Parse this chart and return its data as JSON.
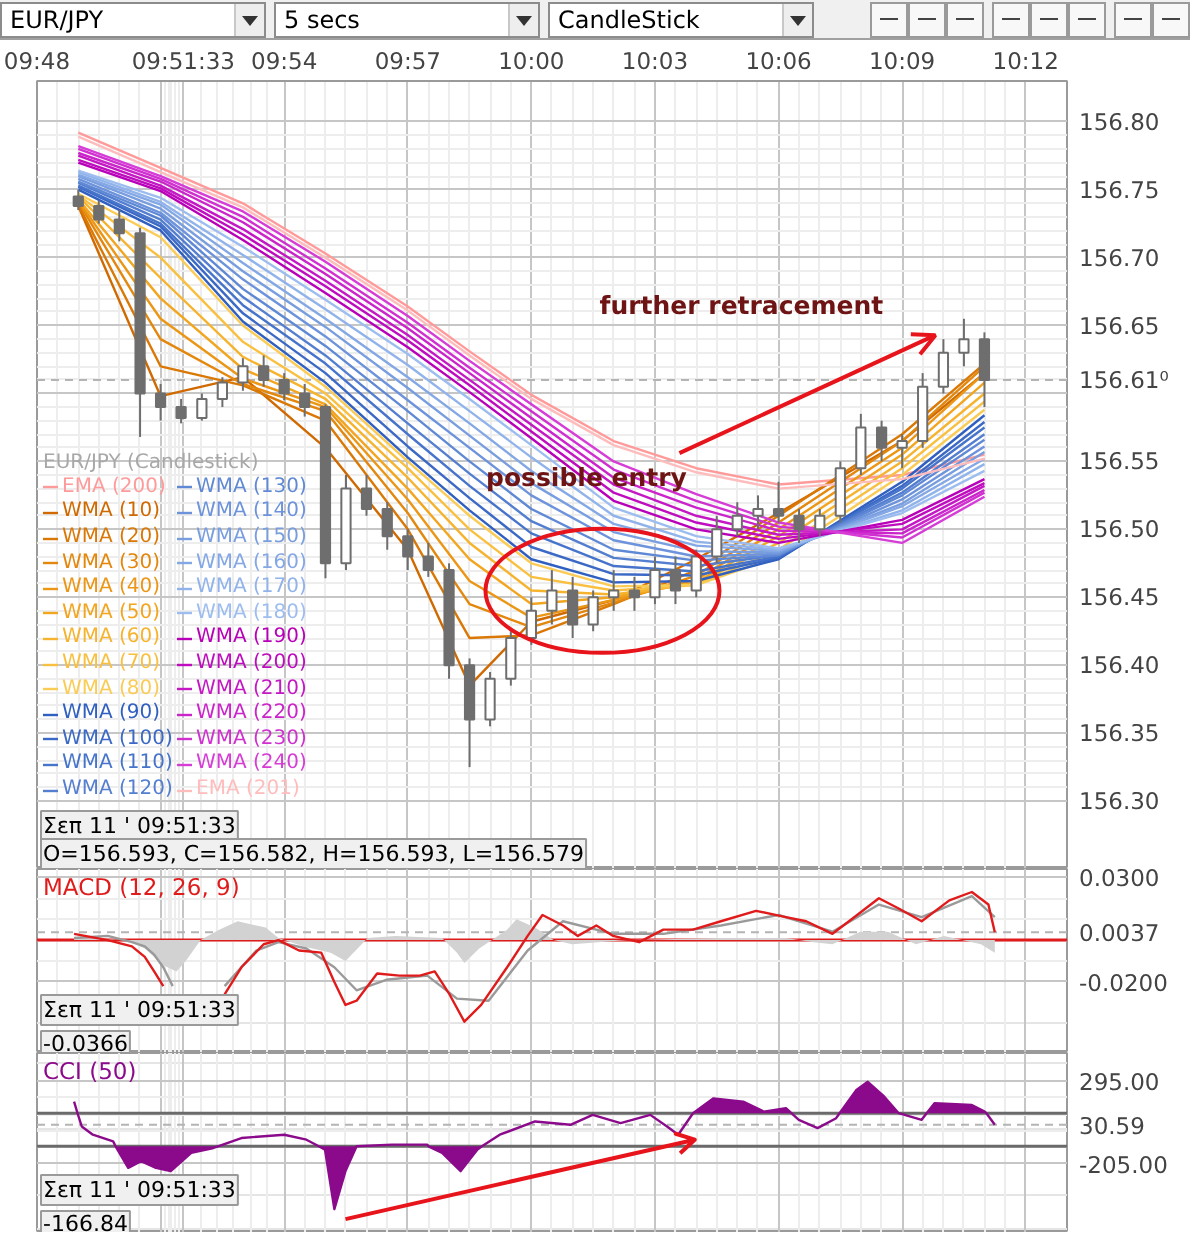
{
  "chart_data": [
    {
      "type": "candlestick",
      "legend_title": "EUR/JPY (Candlestick)",
      "color": "#6e6e6e",
      "x": [
        9.8167,
        9.825,
        9.8333,
        9.8417,
        9.85,
        9.8583,
        9.8667,
        9.875,
        9.8833,
        9.8917,
        9.9,
        9.9083,
        9.9167,
        9.925,
        9.9333,
        9.9417,
        9.95,
        9.9583,
        9.9667,
        9.975,
        9.9833,
        9.9917,
        10.0,
        10.0083,
        10.0167,
        10.025,
        10.0333,
        10.0417,
        10.05,
        10.0583,
        10.0667,
        10.075,
        10.0833,
        10.0917,
        10.1,
        10.1083,
        10.1167,
        10.125,
        10.1333,
        10.1417,
        10.15,
        10.1583,
        10.1667,
        10.175,
        10.1833
      ],
      "ohlc": [
        [
          156.745,
          156.75,
          156.735,
          156.738
        ],
        [
          156.738,
          156.742,
          156.725,
          156.728
        ],
        [
          156.728,
          156.735,
          156.712,
          156.718
        ],
        [
          156.718,
          156.722,
          156.568,
          156.6
        ],
        [
          156.6,
          156.607,
          156.58,
          156.59
        ],
        [
          156.59,
          156.596,
          156.578,
          156.582
        ],
        [
          156.582,
          156.6,
          156.58,
          156.596
        ],
        [
          156.596,
          156.612,
          156.59,
          156.608
        ],
        [
          156.608,
          156.626,
          156.602,
          156.62
        ],
        [
          156.62,
          156.628,
          156.605,
          156.61
        ],
        [
          156.61,
          156.615,
          156.595,
          156.6
        ],
        [
          156.6,
          156.607,
          156.583,
          156.59
        ],
        [
          156.59,
          156.592,
          156.464,
          156.475
        ],
        [
          156.475,
          156.54,
          156.47,
          156.53
        ],
        [
          156.53,
          156.54,
          156.51,
          156.515
        ],
        [
          156.515,
          156.52,
          156.485,
          156.495
        ],
        [
          156.495,
          156.5,
          156.47,
          156.48
        ],
        [
          156.48,
          156.49,
          156.465,
          156.47
        ],
        [
          156.47,
          156.475,
          156.39,
          156.4
        ],
        [
          156.4,
          156.405,
          156.325,
          156.36
        ],
        [
          156.36,
          156.395,
          156.355,
          156.39
        ],
        [
          156.39,
          156.425,
          156.385,
          156.42
        ],
        [
          156.42,
          156.45,
          156.415,
          156.44
        ],
        [
          156.44,
          156.47,
          156.43,
          156.455
        ],
        [
          156.455,
          156.465,
          156.42,
          156.43
        ],
        [
          156.43,
          156.455,
          156.425,
          156.45
        ],
        [
          156.45,
          156.47,
          156.44,
          156.455
        ],
        [
          156.455,
          156.465,
          156.44,
          156.45
        ],
        [
          156.45,
          156.48,
          156.445,
          156.47
        ],
        [
          156.47,
          156.48,
          156.445,
          156.455
        ],
        [
          156.455,
          156.485,
          156.45,
          156.48
        ],
        [
          156.48,
          156.51,
          156.475,
          156.5
        ],
        [
          156.5,
          156.52,
          156.495,
          156.51
        ],
        [
          156.51,
          156.525,
          156.5,
          156.515
        ],
        [
          156.515,
          156.535,
          156.505,
          156.51
        ],
        [
          156.51,
          156.515,
          156.49,
          156.5
        ],
        [
          156.5,
          156.515,
          156.495,
          156.51
        ],
        [
          156.51,
          156.55,
          156.505,
          156.545
        ],
        [
          156.545,
          156.585,
          156.54,
          156.575
        ],
        [
          156.575,
          156.58,
          156.55,
          156.56
        ],
        [
          156.56,
          156.57,
          156.545,
          156.565
        ],
        [
          156.565,
          156.615,
          156.56,
          156.605
        ],
        [
          156.605,
          156.64,
          156.6,
          156.63
        ],
        [
          156.63,
          156.655,
          156.62,
          156.64
        ],
        [
          156.64,
          156.645,
          156.59,
          156.61
        ]
      ],
      "series": [
        {
          "name": "EMA (200)",
          "type": "line",
          "color": "#ff9a9a",
          "x": [
            9.8167,
            9.85,
            9.8833,
            9.9167,
            9.95,
            9.975,
            10.0,
            10.0333,
            10.0667,
            10.1,
            10.15,
            10.1833
          ],
          "values": [
            156.792,
            156.766,
            156.74,
            156.703,
            156.664,
            156.631,
            156.599,
            156.565,
            156.545,
            156.533,
            156.54,
            156.555
          ]
        },
        {
          "name": "WMA (10)",
          "type": "line",
          "color": "#d06a00",
          "x": [
            9.8167,
            9.85,
            9.8833,
            9.9167,
            9.95,
            9.975,
            10.0,
            10.0333,
            10.0667,
            10.1,
            10.15,
            10.1833
          ],
          "values": [
            156.738,
            156.598,
            156.612,
            156.56,
            156.485,
            156.385,
            156.432,
            156.448,
            156.478,
            156.512,
            156.565,
            156.615
          ]
        },
        {
          "name": "WMA (20)",
          "type": "line",
          "color": "#da7806",
          "x": [
            9.8167,
            9.85,
            9.8833,
            9.9167,
            9.95,
            9.975,
            10.0,
            10.0333,
            10.0667,
            10.1,
            10.15,
            10.1833
          ],
          "values": [
            156.739,
            156.62,
            156.606,
            156.58,
            156.5,
            156.42,
            156.422,
            156.445,
            156.47,
            156.51,
            156.57,
            156.622
          ]
        },
        {
          "name": "WMA (30)",
          "type": "line",
          "color": "#e3870d",
          "x": [
            9.8167,
            9.85,
            9.8833,
            9.9167,
            9.95,
            9.975,
            10.0,
            10.0333,
            10.0667,
            10.1,
            10.15,
            10.1833
          ],
          "values": [
            156.741,
            156.64,
            156.607,
            156.587,
            156.512,
            156.445,
            156.428,
            156.446,
            156.466,
            156.505,
            156.565,
            156.62
          ]
        },
        {
          "name": "WMA (40)",
          "type": "line",
          "color": "#eb9614",
          "x": [
            9.8167,
            9.85,
            9.8833,
            9.9167,
            9.95,
            9.975,
            10.0,
            10.0333,
            10.0667,
            10.1,
            10.15,
            10.1833
          ],
          "values": [
            156.742,
            156.655,
            156.611,
            156.59,
            156.522,
            156.462,
            156.435,
            156.448,
            156.463,
            156.5,
            156.56,
            156.615
          ]
        },
        {
          "name": "WMA (50)",
          "type": "line",
          "color": "#f2a51f",
          "x": [
            9.8167,
            9.85,
            9.8833,
            9.9167,
            9.95,
            9.975,
            10.0,
            10.0333,
            10.0667,
            10.1,
            10.15,
            10.1833
          ],
          "values": [
            156.743,
            156.67,
            156.618,
            156.592,
            156.53,
            156.478,
            156.445,
            156.45,
            156.461,
            156.495,
            156.555,
            156.608
          ]
        },
        {
          "name": "WMA (60)",
          "type": "line",
          "color": "#f6b32e",
          "x": [
            9.8167,
            9.85,
            9.8833,
            9.9167,
            9.95,
            9.975,
            10.0,
            10.0333,
            10.0667,
            10.1,
            10.15,
            10.1833
          ],
          "values": [
            156.745,
            156.685,
            156.627,
            156.596,
            156.538,
            156.49,
            156.455,
            156.452,
            156.46,
            156.49,
            156.55,
            156.6
          ]
        },
        {
          "name": "WMA (70)",
          "type": "line",
          "color": "#f9c040",
          "x": [
            9.8167,
            9.85,
            9.8833,
            9.9167,
            9.95,
            9.975,
            10.0,
            10.0333,
            10.0667,
            10.1,
            10.15,
            10.1833
          ],
          "values": [
            156.746,
            156.7,
            156.638,
            156.6,
            156.545,
            156.5,
            156.465,
            156.455,
            156.459,
            156.485,
            156.545,
            156.594
          ]
        },
        {
          "name": "WMA (80)",
          "type": "line",
          "color": "#fbcc55",
          "x": [
            9.8167,
            9.85,
            9.8833,
            9.9167,
            9.95,
            9.975,
            10.0,
            10.0333,
            10.0667,
            10.1,
            10.15,
            10.1833
          ],
          "values": [
            156.747,
            156.715,
            156.65,
            156.605,
            156.55,
            156.51,
            156.475,
            156.458,
            156.459,
            156.48,
            156.54,
            156.588
          ]
        },
        {
          "name": "WMA (90)",
          "type": "line",
          "color": "#2f5fc0",
          "x": [
            9.8167,
            9.85,
            9.8833,
            9.9167,
            9.95,
            9.975,
            10.0,
            10.0333,
            10.0667,
            10.1,
            10.15,
            10.1833
          ],
          "values": [
            156.75,
            156.72,
            156.653,
            156.608,
            156.553,
            156.514,
            156.478,
            156.461,
            156.462,
            156.478,
            156.535,
            156.584
          ]
        },
        {
          "name": "WMA (100)",
          "type": "line",
          "color": "#3b69c5",
          "x": [
            9.8167,
            9.85,
            9.8833,
            9.9167,
            9.95,
            9.975,
            10.0,
            10.0333,
            10.0667,
            10.1,
            10.15,
            10.1833
          ],
          "values": [
            156.752,
            156.723,
            156.659,
            156.615,
            156.561,
            156.523,
            156.487,
            156.467,
            156.466,
            156.479,
            156.532,
            156.579
          ]
        },
        {
          "name": "WMA (110)",
          "type": "line",
          "color": "#4774cb",
          "x": [
            9.8167,
            9.85,
            9.8833,
            9.9167,
            9.95,
            9.975,
            10.0,
            10.0333,
            10.0667,
            10.1,
            10.15,
            10.1833
          ],
          "values": [
            156.753,
            156.725,
            156.665,
            156.622,
            156.57,
            156.532,
            156.497,
            156.473,
            156.469,
            156.48,
            156.53,
            156.575
          ]
        },
        {
          "name": "WMA (120)",
          "type": "line",
          "color": "#547ed0",
          "x": [
            9.8167,
            9.85,
            9.8833,
            9.9167,
            9.95,
            9.975,
            10.0,
            10.0333,
            10.0667,
            10.1,
            10.15,
            10.1833
          ],
          "values": [
            156.755,
            156.728,
            156.671,
            156.628,
            156.578,
            156.541,
            156.506,
            156.479,
            156.473,
            156.481,
            156.527,
            156.57
          ]
        },
        {
          "name": "WMA (130)",
          "type": "line",
          "color": "#6089d5",
          "x": [
            9.8167,
            9.85,
            9.8833,
            9.9167,
            9.95,
            9.975,
            10.0,
            10.0333,
            10.0667,
            10.1,
            10.15,
            10.1833
          ],
          "values": [
            156.756,
            156.731,
            156.677,
            156.635,
            156.587,
            156.55,
            156.515,
            156.485,
            156.477,
            156.481,
            156.525,
            156.566
          ]
        },
        {
          "name": "WMA (140)",
          "type": "line",
          "color": "#6c93db",
          "x": [
            9.8167,
            9.85,
            9.8833,
            9.9167,
            9.95,
            9.975,
            10.0,
            10.0333,
            10.0667,
            10.1,
            10.15,
            10.1833
          ],
          "values": [
            156.758,
            156.733,
            156.684,
            156.642,
            156.595,
            156.56,
            156.525,
            156.492,
            156.48,
            156.482,
            156.522,
            156.561
          ]
        },
        {
          "name": "WMA (150)",
          "type": "line",
          "color": "#789ee0",
          "x": [
            9.8167,
            9.85,
            9.8833,
            9.9167,
            9.95,
            9.975,
            10.0,
            10.0333,
            10.0667,
            10.1,
            10.15,
            10.1833
          ],
          "values": [
            156.76,
            156.736,
            156.69,
            156.649,
            156.604,
            156.569,
            156.534,
            156.498,
            156.484,
            156.483,
            156.519,
            156.557
          ]
        },
        {
          "name": "WMA (160)",
          "type": "line",
          "color": "#84a8e5",
          "x": [
            9.8167,
            9.85,
            9.8833,
            9.9167,
            9.95,
            9.975,
            10.0,
            10.0333,
            10.0667,
            10.1,
            10.15,
            10.1833
          ],
          "values": [
            156.761,
            156.739,
            156.696,
            156.655,
            156.612,
            156.578,
            156.543,
            156.504,
            156.488,
            156.484,
            156.517,
            156.552
          ]
        },
        {
          "name": "WMA (170)",
          "type": "line",
          "color": "#91b3eb",
          "x": [
            9.8167,
            9.85,
            9.8833,
            9.9167,
            9.95,
            9.975,
            10.0,
            10.0333,
            10.0667,
            10.1,
            10.15,
            10.1833
          ],
          "values": [
            156.763,
            156.741,
            156.702,
            156.662,
            156.621,
            156.587,
            156.553,
            156.51,
            156.491,
            156.485,
            156.514,
            156.548
          ]
        },
        {
          "name": "WMA (180)",
          "type": "line",
          "color": "#9dbdf0",
          "x": [
            9.8167,
            9.85,
            9.8833,
            9.9167,
            9.95,
            9.975,
            10.0,
            10.0333,
            10.0667,
            10.1,
            10.15,
            10.1833
          ],
          "values": [
            156.764,
            156.744,
            156.708,
            156.669,
            156.629,
            156.596,
            156.562,
            156.516,
            156.495,
            156.486,
            156.512,
            156.543
          ]
        },
        {
          "name": "WMA (190)",
          "type": "line",
          "color": "#b800b8",
          "x": [
            9.8167,
            9.85,
            9.8833,
            9.9167,
            9.95,
            9.975,
            10.0,
            10.0333,
            10.0667,
            10.1,
            10.15,
            10.1833
          ],
          "values": [
            156.77,
            156.749,
            156.713,
            156.674,
            156.634,
            156.601,
            156.567,
            156.521,
            156.5,
            156.49,
            156.507,
            156.537
          ]
        },
        {
          "name": "WMA (200)",
          "type": "line",
          "color": "#be0cbe",
          "x": [
            9.8167,
            9.85,
            9.8833,
            9.9167,
            9.95,
            9.975,
            10.0,
            10.0333,
            10.0667,
            10.1,
            10.15,
            10.1833
          ],
          "values": [
            156.772,
            156.751,
            156.717,
            156.679,
            156.639,
            156.606,
            156.572,
            156.527,
            156.505,
            156.493,
            156.504,
            156.534
          ]
        },
        {
          "name": "WMA (210)",
          "type": "line",
          "color": "#c418c4",
          "x": [
            9.8167,
            9.85,
            9.8833,
            9.9167,
            9.95,
            9.975,
            10.0,
            10.0333,
            10.0667,
            10.1,
            10.15,
            10.1833
          ],
          "values": [
            156.775,
            156.753,
            156.721,
            156.683,
            156.643,
            156.61,
            156.577,
            156.533,
            156.51,
            156.496,
            156.5,
            156.532
          ]
        },
        {
          "name": "WMA (220)",
          "type": "line",
          "color": "#ca24ca",
          "x": [
            9.8167,
            9.85,
            9.8833,
            9.9167,
            9.95,
            9.975,
            10.0,
            10.0333,
            10.0667,
            10.1,
            10.15,
            10.1833
          ],
          "values": [
            156.777,
            156.756,
            156.726,
            156.688,
            156.648,
            156.615,
            156.582,
            156.538,
            156.516,
            156.499,
            156.497,
            156.529
          ]
        },
        {
          "name": "WMA (230)",
          "type": "line",
          "color": "#d030d0",
          "x": [
            9.8167,
            9.85,
            9.8833,
            9.9167,
            9.95,
            9.975,
            10.0,
            10.0333,
            10.0667,
            10.1,
            10.15,
            10.1833
          ],
          "values": [
            156.78,
            156.758,
            156.73,
            156.692,
            156.652,
            156.619,
            156.587,
            156.544,
            156.521,
            156.502,
            156.494,
            156.527
          ]
        },
        {
          "name": "WMA (240)",
          "type": "line",
          "color": "#d63cd6",
          "x": [
            9.8167,
            9.85,
            9.8833,
            9.9167,
            9.95,
            9.975,
            10.0,
            10.0333,
            10.0667,
            10.1,
            10.15,
            10.1833
          ],
          "values": [
            156.782,
            156.76,
            156.734,
            156.697,
            156.657,
            156.624,
            156.592,
            156.55,
            156.526,
            156.505,
            156.49,
            156.524
          ]
        },
        {
          "name": "EMA (201)",
          "type": "line",
          "color": "#ffbcbc",
          "x": [
            9.8167,
            9.85,
            9.8833,
            9.9167,
            9.95,
            9.975,
            10.0,
            10.0333,
            10.0667,
            10.1,
            10.15,
            10.1833
          ],
          "values": [
            156.789,
            156.763,
            156.737,
            156.7,
            156.661,
            156.628,
            156.596,
            156.562,
            156.542,
            156.53,
            156.537,
            156.552
          ]
        }
      ],
      "xlim": [
        9.8,
        10.2167
      ],
      "xticks": [
        {
          "value": 9.8,
          "label": "09:48"
        },
        {
          "value": 9.85,
          "label": null
        },
        {
          "value": 9.8592,
          "label": "09:51:33"
        },
        {
          "value": 9.9,
          "label": "09:54"
        },
        {
          "value": 9.95,
          "label": "09:57"
        },
        {
          "value": 10.0,
          "label": "10:00"
        },
        {
          "value": 10.05,
          "label": "10:03"
        },
        {
          "value": 10.1,
          "label": "10:06"
        },
        {
          "value": 10.15,
          "label": "10:09"
        },
        {
          "value": 10.2,
          "label": "10:12"
        }
      ],
      "ylim": [
        156.25,
        156.83
      ],
      "yticks": [
        {
          "value": 156.3,
          "label": "156.30"
        },
        {
          "value": 156.35,
          "label": "156.35"
        },
        {
          "value": 156.4,
          "label": "156.40"
        },
        {
          "value": 156.45,
          "label": "156.45"
        },
        {
          "value": 156.5,
          "label": "156.50"
        },
        {
          "value": 156.55,
          "label": "156.55"
        },
        {
          "value": 156.6,
          "label": null
        },
        {
          "value": 156.65,
          "label": "156.65"
        },
        {
          "value": 156.7,
          "label": "156.70"
        },
        {
          "value": 156.75,
          "label": "156.75"
        },
        {
          "value": 156.8,
          "label": "156.80"
        }
      ],
      "grid": true,
      "legend": "bottom left",
      "ref_lines": [
        {
          "axis": "y",
          "value": 156.61,
          "label": "156.61⁰",
          "line_style": "dashed",
          "color": "#b4b4b4"
        }
      ],
      "annotations": [
        "EUR/JPY",
        "5 secs",
        "CandleStick",
        "Σεπ 11 ' 09:51:33",
        "O=156.593, C=156.582, H=156.593, L=156.579",
        "possible entry",
        {
          "text": "further retracement",
          "x": 10.1667,
          "y": 156.64
        }
      ]
    },
    {
      "type": "line",
      "series": [
        {
          "type": "area",
          "color": "#d2d2d2",
          "x": [
            9.815,
            9.8361,
            9.8436,
            9.8511,
            9.8564,
            9.8602,
            9.8662,
            9.8737,
            9.8812,
            9.8925,
            9.8977,
            9.9075,
            9.9188,
            9.9248,
            9.9338,
            9.9451,
            9.9639,
            9.9699,
            9.9729,
            9.9789,
            9.9902,
            9.994,
            10.0015,
            10.009,
            10.0165,
            10.0391,
            10.0767,
            10.103,
            10.1143,
            10.1218,
            10.1331,
            10.1443,
            10.1556,
            10.1669,
            10.1819,
            10.1875
          ],
          "values": [
            0.001,
            0,
            -0.004,
            -0.012,
            -0.015,
            -0.01,
            0,
            0.005,
            0.009,
            0.006,
            0.001,
            -0.003,
            -0.006,
            -0.01,
            0.001,
            0.002,
            0.001,
            -0.006,
            -0.011,
            -0.004,
            0.005,
            0.01,
            0.006,
            0,
            -0.002,
            0,
            0.001,
            0.001,
            -0.001,
            -0.002,
            0.004,
            0.004,
            -0.002,
            0.002,
            -0.002,
            -0.006
          ]
        },
        {
          "color": "#9a9a9a",
          "x": [
            9.815,
            9.8286,
            9.8384,
            9.8436,
            9.8474,
            9.8511,
            9.8549,
            9.8592,
            9.8759,
            9.8887,
            9.8977,
            9.909,
            9.9203,
            9.9293,
            9.9413,
            9.9579,
            9.9699,
            9.9827,
            9.9985,
            10.0128,
            10.0331,
            10.0534,
            10.0767,
            10.1,
            10.1218,
            10.1406,
            10.1579,
            10.1782,
            10.1875
          ],
          "values": [
            0.001,
            0.002,
            -0.001,
            -0.003,
            -0.007,
            -0.013,
            -0.022,
            null,
            -0.022,
            -0.005,
            -0.001,
            -0.004,
            -0.013,
            -0.024,
            -0.019,
            -0.017,
            -0.028,
            -0.029,
            -0.005,
            0.009,
            0.003,
            0.003,
            0.007,
            0.012,
            0.004,
            0.017,
            0.011,
            0.021,
            0.011
          ]
        },
        {
          "name": "MACD (12, 26, 9)",
          "color": "#e01b1b",
          "x": [
            9.815,
            9.8286,
            9.8384,
            9.8436,
            9.8474,
            9.8511,
            9.8592,
            9.8759,
            9.8827,
            9.8917,
            9.8977,
            9.906,
            9.915,
            9.9203,
            9.9248,
            9.9293,
            9.9376,
            9.9466,
            9.9549,
            9.9609,
            9.9669,
            9.9729,
            9.9797,
            9.9902,
            9.9985,
            10.0045,
            10.0128,
            10.0188,
            10.0263,
            10.0331,
            10.0436,
            10.0534,
            10.0654,
            10.0767,
            10.0909,
            10.103,
            10.1112,
            10.1218,
            10.1285,
            10.1406,
            10.1488,
            10.1579,
            10.1691,
            10.1782,
            10.1849,
            10.1875
          ],
          "values": [
            0.003,
            0,
            -0.003,
            -0.008,
            -0.015,
            -0.022,
            null,
            -0.026,
            -0.013,
            -0.002,
            0,
            -0.005,
            -0.006,
            -0.02,
            -0.031,
            -0.029,
            -0.016,
            -0.017,
            -0.017,
            -0.015,
            -0.026,
            -0.039,
            -0.031,
            -0.013,
            0.002,
            0.012,
            0.007,
            0.002,
            0.007,
            0.002,
            -0.001,
            0.005,
            0.005,
            0.009,
            0.014,
            0.011,
            0.009,
            0.003,
            0.009,
            0.02,
            0.015,
            0.009,
            0.019,
            0.023,
            0.017,
            0.0037
          ]
        }
      ],
      "xlim": [
        9.8,
        10.2167
      ],
      "xticks": [
        {
          "value": 9.8,
          "label": null
        },
        {
          "value": 9.85,
          "label": null
        },
        {
          "value": 9.8592,
          "label": null
        },
        {
          "value": 9.9,
          "label": null
        },
        {
          "value": 9.95,
          "label": null
        },
        {
          "value": 10.0,
          "label": null
        },
        {
          "value": 10.05,
          "label": null
        },
        {
          "value": 10.1,
          "label": null
        },
        {
          "value": 10.15,
          "label": null
        },
        {
          "value": 10.2,
          "label": null
        }
      ],
      "ylim": [
        -0.054,
        0.034
      ],
      "yticks": [
        {
          "value": -0.02,
          "label": "-0.0200"
        },
        {
          "value": 0.03,
          "label": "0.0300"
        }
      ],
      "tick_labels": "y",
      "grid": true,
      "legend": "top left",
      "ref_lines": [
        {
          "axis": "y",
          "value": 0,
          "color": "#e01b1b"
        },
        {
          "axis": "y",
          "value": 0.0037,
          "label": "0.0037",
          "line_style": "dashed",
          "color": "#b4b4b4"
        }
      ],
      "annotations": [
        "Σεπ 11 ' 09:51:33",
        "-0.0366"
      ]
    },
    {
      "type": "line",
      "series": [
        {
          "name": "CCI (50)",
          "color": "#8b0a8b",
          "x": [
            9.815,
            9.8164,
            9.8181,
            9.8226,
            9.8308,
            9.8318,
            9.8369,
            9.8421,
            9.8481,
            9.8541,
            9.8624,
            9.8714,
            9.8732,
            9.8827,
            9.9,
            9.909,
            9.914,
            9.9165,
            9.9203,
            9.9248,
            9.9293,
            9.9436,
            9.9579,
            9.9584,
            9.9639,
            9.9714,
            9.9782,
            9.98,
            9.9872,
            10.0015,
            10.0158,
            10.0248,
            10.0361,
            10.0481,
            10.0549,
            10.0594,
            10.0654,
            10.0737,
            10.0857,
            10.094,
            10.103,
            10.1052,
            10.1082,
            10.1158,
            10.1233,
            10.1247,
            10.1315,
            10.1361,
            10.1428,
            10.1486,
            10.1579,
            10.1599,
            10.1631,
            10.1782,
            10.1834,
            10.1841,
            10.1875
          ],
          "values": [
            170,
            100,
            20,
            -30,
            -70,
            -100,
            -230,
            -190,
            -230,
            -250,
            -140,
            -110,
            -100,
            -50,
            -30,
            -60,
            -100,
            -120,
            -480,
            -250,
            -100,
            -90,
            -90,
            -100,
            -140,
            -250,
            -120,
            -100,
            -30,
            50,
            30,
            90,
            40,
            90,
            20,
            -30,
            100,
            190,
            170,
            110,
            130,
            100,
            60,
            10,
            70,
            100,
            240,
            290,
            200,
            100,
            60,
            100,
            160,
            150,
            110,
            100,
            30.59
          ],
          "lower": [
            null,
            null,
            null,
            null,
            null,
            -100,
            -230,
            -190,
            -230,
            -250,
            -140,
            -110,
            -100,
            null,
            null,
            null,
            -100,
            -120,
            -480,
            -250,
            -100,
            null,
            null,
            -100,
            -140,
            -250,
            -120,
            -100,
            null,
            null,
            null,
            null,
            null,
            null,
            null,
            null,
            100,
            100,
            100,
            100,
            100,
            100,
            null,
            null,
            null,
            100,
            100,
            100,
            100,
            100,
            null,
            100,
            100,
            100,
            100,
            100,
            null
          ],
          "upper": [
            null,
            null,
            null,
            null,
            null,
            -100,
            -100,
            -100,
            -100,
            -100,
            -100,
            -100,
            -100,
            null,
            null,
            null,
            -100,
            -100,
            -100,
            -100,
            -100,
            null,
            null,
            -100,
            -100,
            -100,
            -100,
            -100,
            null,
            null,
            null,
            null,
            null,
            null,
            null,
            null,
            100,
            190,
            170,
            110,
            130,
            100,
            null,
            null,
            null,
            100,
            240,
            290,
            200,
            100,
            null,
            100,
            160,
            150,
            110,
            100,
            null
          ]
        },
        {
          "type": "line",
          "color": "#e8141b",
          "x": [
            9.9248,
            10.0661,
            10.0584,
            10.0661,
            10.0602
          ],
          "values": [
            -540,
            -60,
            -24,
            -60,
            -142
          ]
        }
      ],
      "xlim": [
        9.8,
        10.2167
      ],
      "xticks": [
        {
          "value": 9.8,
          "label": null
        },
        {
          "value": 9.85,
          "label": null
        },
        {
          "value": 9.8592,
          "label": null
        },
        {
          "value": 9.9,
          "label": null
        },
        {
          "value": 9.95,
          "label": null
        },
        {
          "value": 10.0,
          "label": null
        },
        {
          "value": 10.05,
          "label": null
        },
        {
          "value": 10.1,
          "label": null
        },
        {
          "value": 10.15,
          "label": null
        },
        {
          "value": 10.2,
          "label": null
        }
      ],
      "ylim": [
        -624,
        464
      ],
      "yticks": [
        {
          "value": -205,
          "label": "-205.00"
        },
        {
          "value": 295,
          "label": "295.00"
        }
      ],
      "tick_labels": "y",
      "grid": true,
      "legend": "top left",
      "ref_lines": [
        {
          "axis": "y",
          "value": 100,
          "color": "#6a6a6a"
        },
        {
          "axis": "y",
          "value": -100,
          "color": "#6a6a6a"
        },
        {
          "axis": "y",
          "value": 30.59,
          "label": "30.59",
          "line_style": "dashed",
          "color": "#b4b4b4"
        }
      ],
      "annotations": [
        "Σεπ 11 ' 09:51:33",
        "-166.84"
      ]
    }
  ]
}
